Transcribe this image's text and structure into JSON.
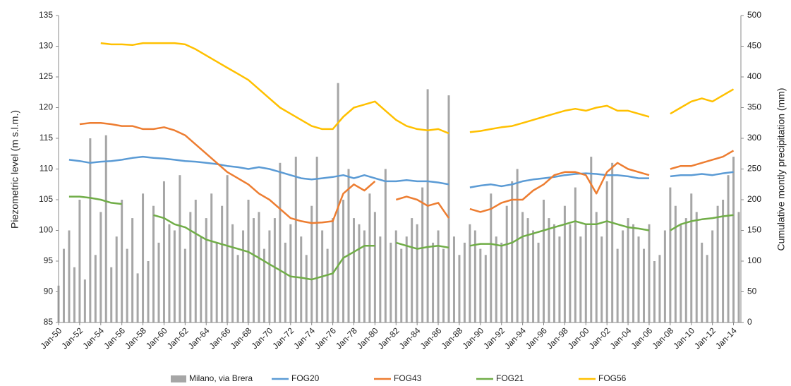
{
  "chart_data": {
    "type": "line",
    "ylabel": "Piezometric level (m s.l.m.)",
    "y2label": "Cumulative montly precipitation (mm)",
    "xlim": [
      1950,
      2014.7
    ],
    "xticks": [
      {
        "value": 1950,
        "label": "Jan-50"
      },
      {
        "value": 1952,
        "label": "Jan-52"
      },
      {
        "value": 1954,
        "label": "Jan-54"
      },
      {
        "value": 1956,
        "label": "Jan-56"
      },
      {
        "value": 1958,
        "label": "Jan-58"
      },
      {
        "value": 1960,
        "label": "Jan-60"
      },
      {
        "value": 1962,
        "label": "Jan-62"
      },
      {
        "value": 1964,
        "label": "Jan-64"
      },
      {
        "value": 1966,
        "label": "Jan-66"
      },
      {
        "value": 1968,
        "label": "Jan-68"
      },
      {
        "value": 1970,
        "label": "Jan-70"
      },
      {
        "value": 1972,
        "label": "Jan-72"
      },
      {
        "value": 1974,
        "label": "Jan-74"
      },
      {
        "value": 1976,
        "label": "Jan-76"
      },
      {
        "value": 1978,
        "label": "Jan-78"
      },
      {
        "value": 1980,
        "label": "Jan-80"
      },
      {
        "value": 1982,
        "label": "Jan-82"
      },
      {
        "value": 1984,
        "label": "Jan-84"
      },
      {
        "value": 1986,
        "label": "Jan-86"
      },
      {
        "value": 1988,
        "label": "Jan-88"
      },
      {
        "value": 1990,
        "label": "Jan-90"
      },
      {
        "value": 1992,
        "label": "Jan-92"
      },
      {
        "value": 1994,
        "label": "Jan-94"
      },
      {
        "value": 1996,
        "label": "Jan-96"
      },
      {
        "value": 1998,
        "label": "Jan-98"
      },
      {
        "value": 2000,
        "label": "Jan-00"
      },
      {
        "value": 2002,
        "label": "Jan-02"
      },
      {
        "value": 2004,
        "label": "Jan-04"
      },
      {
        "value": 2006,
        "label": "Jan-06"
      },
      {
        "value": 2008,
        "label": "Jan-08"
      },
      {
        "value": 2010,
        "label": "Jan-10"
      },
      {
        "value": 2012,
        "label": "Jan-12"
      },
      {
        "value": 2014,
        "label": "Jan-14"
      }
    ],
    "ylim": [
      85,
      135
    ],
    "yticks": [
      85,
      90,
      95,
      100,
      105,
      110,
      115,
      120,
      125,
      130,
      135
    ],
    "y2lim": [
      0,
      500
    ],
    "y2ticks": [
      0,
      50,
      100,
      150,
      200,
      250,
      300,
      350,
      400,
      450,
      500
    ],
    "x": [
      1951,
      1952,
      1953,
      1954,
      1955,
      1956,
      1957,
      1958,
      1959,
      1960,
      1961,
      1962,
      1963,
      1964,
      1965,
      1966,
      1967,
      1968,
      1969,
      1970,
      1971,
      1972,
      1973,
      1974,
      1975,
      1976,
      1977,
      1978,
      1979,
      1980,
      1981,
      1982,
      1983,
      1984,
      1985,
      1986,
      1987,
      1988,
      1989,
      1990,
      1991,
      1992,
      1993,
      1994,
      1995,
      1996,
      1997,
      1998,
      1999,
      2000,
      2001,
      2002,
      2003,
      2004,
      2005,
      2006,
      2007,
      2008,
      2009,
      2010,
      2011,
      2012,
      2013,
      2014
    ],
    "series": [
      {
        "name": "Milano, via Brera",
        "type": "bar",
        "axis": "y2",
        "color": "#a6a6a6",
        "x": [
          1950,
          1950.5,
          1951,
          1951.5,
          1952,
          1952.5,
          1953,
          1953.5,
          1954,
          1954.5,
          1955,
          1955.5,
          1956,
          1956.5,
          1957,
          1957.5,
          1958,
          1958.5,
          1959,
          1959.5,
          1960,
          1960.5,
          1961,
          1961.5,
          1962,
          1962.5,
          1963,
          1963.5,
          1964,
          1964.5,
          1965,
          1965.5,
          1966,
          1966.5,
          1967,
          1967.5,
          1968,
          1968.5,
          1969,
          1969.5,
          1970,
          1970.5,
          1971,
          1971.5,
          1972,
          1972.5,
          1973,
          1973.5,
          1974,
          1974.5,
          1975,
          1975.5,
          1976,
          1976.5,
          1977,
          1977.5,
          1978,
          1978.5,
          1979,
          1979.5,
          1980,
          1980.5,
          1981,
          1981.5,
          1982,
          1982.5,
          1983,
          1983.5,
          1984,
          1984.5,
          1985,
          1985.5,
          1986,
          1986.5,
          1987,
          1987.5,
          1988,
          1988.5,
          1989,
          1989.5,
          1990,
          1990.5,
          1991,
          1991.5,
          1992,
          1992.5,
          1993,
          1993.5,
          1994,
          1994.5,
          1995,
          1995.5,
          1996,
          1996.5,
          1997,
          1997.5,
          1998,
          1998.5,
          1999,
          1999.5,
          2000,
          2000.5,
          2001,
          2001.5,
          2002,
          2002.5,
          2003,
          2003.5,
          2004,
          2004.5,
          2005,
          2005.5,
          2006,
          2006.5,
          2007,
          2007.5,
          2008,
          2008.5,
          2009,
          2009.5,
          2010,
          2010.5,
          2011,
          2011.5,
          2012,
          2012.5,
          2013,
          2013.5,
          2014,
          2014.5
        ],
        "values": [
          60,
          120,
          150,
          90,
          200,
          70,
          300,
          110,
          180,
          305,
          90,
          140,
          200,
          120,
          170,
          80,
          210,
          100,
          190,
          130,
          230,
          160,
          150,
          240,
          120,
          180,
          200,
          140,
          170,
          210,
          130,
          190,
          240,
          160,
          110,
          150,
          200,
          170,
          180,
          120,
          150,
          170,
          260,
          130,
          160,
          270,
          140,
          110,
          190,
          270,
          150,
          120,
          170,
          390,
          200,
          250,
          170,
          160,
          150,
          210,
          180,
          140,
          250,
          130,
          150,
          120,
          140,
          170,
          160,
          220,
          380,
          130,
          150,
          120,
          370,
          140,
          110,
          130,
          160,
          150,
          120,
          110,
          210,
          140,
          130,
          190,
          230,
          250,
          180,
          170,
          150,
          130,
          200,
          170,
          160,
          140,
          190,
          160,
          220,
          140,
          160,
          270,
          180,
          140,
          230,
          260,
          120,
          150,
          170,
          160,
          140,
          120,
          160,
          100,
          110,
          150,
          220,
          190,
          160,
          170,
          210,
          180,
          130,
          110,
          150,
          190,
          200,
          240,
          270,
          180
        ]
      },
      {
        "name": "FOG20",
        "color": "#5b9bd5",
        "values": [
          111.5,
          111.3,
          111,
          111.2,
          111.3,
          111.5,
          111.8,
          112,
          111.8,
          111.7,
          111.5,
          111.3,
          111.2,
          111,
          110.8,
          110.5,
          110.3,
          110,
          110.3,
          110,
          109.5,
          109,
          108.5,
          108.3,
          108.5,
          108.7,
          109,
          108.5,
          109,
          108.5,
          108,
          108,
          108.2,
          108,
          108,
          107.8,
          107.5,
          null,
          107,
          107.3,
          107.5,
          107.2,
          107.5,
          108,
          108.3,
          108.5,
          108.7,
          109,
          109.2,
          109.3,
          109.2,
          109,
          109,
          108.8,
          108.5,
          108.5,
          null,
          108.8,
          109,
          109,
          109.2,
          109,
          109.3,
          109.5
        ]
      },
      {
        "name": "FOG43",
        "color": "#ed7d31",
        "values": [
          null,
          117.3,
          117.5,
          117.5,
          117.3,
          117,
          117,
          116.5,
          116.5,
          116.8,
          116.3,
          115.5,
          114,
          112.5,
          111,
          109.5,
          108.5,
          107.5,
          106,
          105,
          103.5,
          102,
          101.5,
          101.2,
          101.3,
          101.5,
          106,
          107.5,
          106.5,
          108,
          null,
          105,
          105.5,
          105,
          104,
          104.5,
          102,
          null,
          103.5,
          103,
          103.5,
          104.5,
          105,
          105,
          106.5,
          107.5,
          109,
          109.5,
          109.5,
          109,
          106,
          109.5,
          111,
          110,
          109.5,
          109,
          null,
          110,
          110.5,
          110.5,
          111,
          111.5,
          112,
          113
        ]
      },
      {
        "name": "FOG21",
        "color": "#70ad47",
        "values": [
          105.5,
          105.5,
          105.3,
          105,
          104.5,
          104.3,
          null,
          null,
          102.5,
          102,
          101,
          100.5,
          99.5,
          98.5,
          98,
          97.5,
          97,
          96.5,
          95.5,
          94.5,
          93.5,
          92.5,
          92.3,
          92,
          92.5,
          93,
          95.5,
          96.5,
          97.5,
          97.5,
          null,
          98,
          97.5,
          97,
          97.3,
          97.5,
          97.2,
          null,
          97.5,
          97.8,
          97.8,
          97.5,
          98,
          99,
          99.5,
          100,
          100.5,
          101,
          101.5,
          101,
          101,
          101.5,
          101,
          100.5,
          100.3,
          100,
          null,
          100,
          101,
          101.5,
          101.8,
          102,
          102.3,
          102.5
        ]
      },
      {
        "name": "FOG56",
        "color": "#ffc000",
        "values": [
          null,
          null,
          null,
          130.5,
          130.3,
          130.3,
          130.2,
          130.5,
          130.5,
          130.5,
          130.5,
          130.3,
          129.5,
          128.5,
          127.5,
          126.5,
          125.5,
          124.5,
          123,
          121.5,
          120,
          119,
          118,
          117,
          116.5,
          116.5,
          118.5,
          120,
          120.5,
          121,
          119.5,
          118,
          117,
          116.5,
          116.3,
          116.5,
          115.8,
          null,
          116,
          116.2,
          116.5,
          116.8,
          117,
          117.5,
          118,
          118.5,
          119,
          119.5,
          119.8,
          119.5,
          120,
          120.3,
          119.5,
          119.5,
          119,
          118.5,
          null,
          119,
          120,
          121,
          121.5,
          121,
          122,
          123
        ]
      }
    ]
  }
}
